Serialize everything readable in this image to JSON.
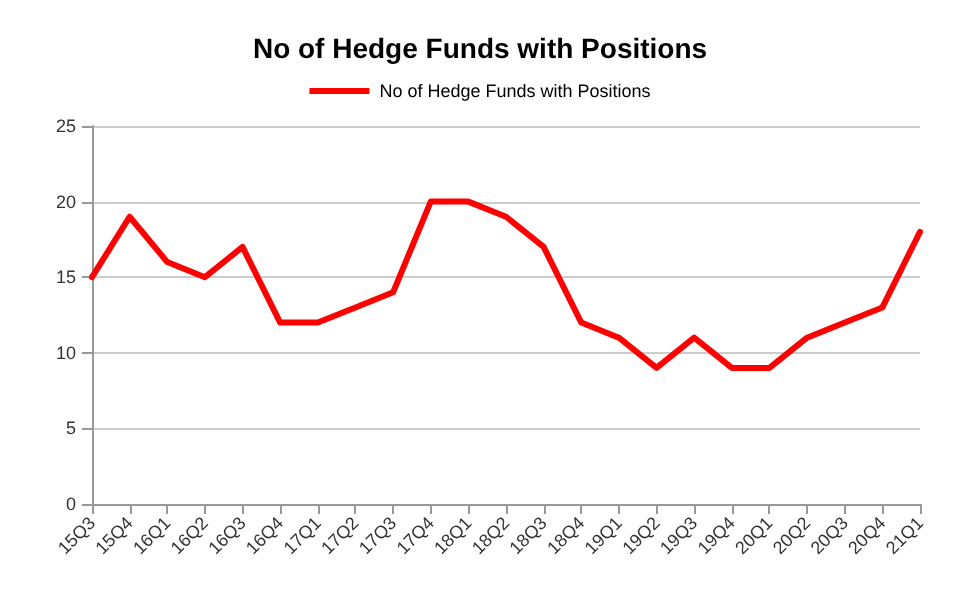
{
  "chart_data": {
    "type": "line",
    "title": "No of Hedge Funds with Positions",
    "categories": [
      "15Q3",
      "15Q4",
      "16Q1",
      "16Q2",
      "16Q3",
      "16Q4",
      "17Q1",
      "17Q2",
      "17Q3",
      "17Q4",
      "18Q1",
      "18Q2",
      "18Q3",
      "18Q4",
      "19Q1",
      "19Q2",
      "19Q3",
      "19Q4",
      "20Q1",
      "20Q2",
      "20Q3",
      "20Q4",
      "21Q1"
    ],
    "series": [
      {
        "name": "No of Hedge Funds with Positions",
        "color": "#ff0000",
        "values": [
          15,
          19,
          16,
          15,
          17,
          12,
          12,
          13,
          14,
          20,
          20,
          19,
          17,
          12,
          11,
          9,
          11,
          9,
          9,
          11,
          12,
          13,
          18
        ]
      }
    ],
    "ylim": [
      0,
      25
    ],
    "yticks": [
      0,
      5,
      10,
      15,
      20,
      25
    ],
    "grid": "y",
    "legend": "top",
    "marker": "none",
    "line_style": "solid"
  }
}
